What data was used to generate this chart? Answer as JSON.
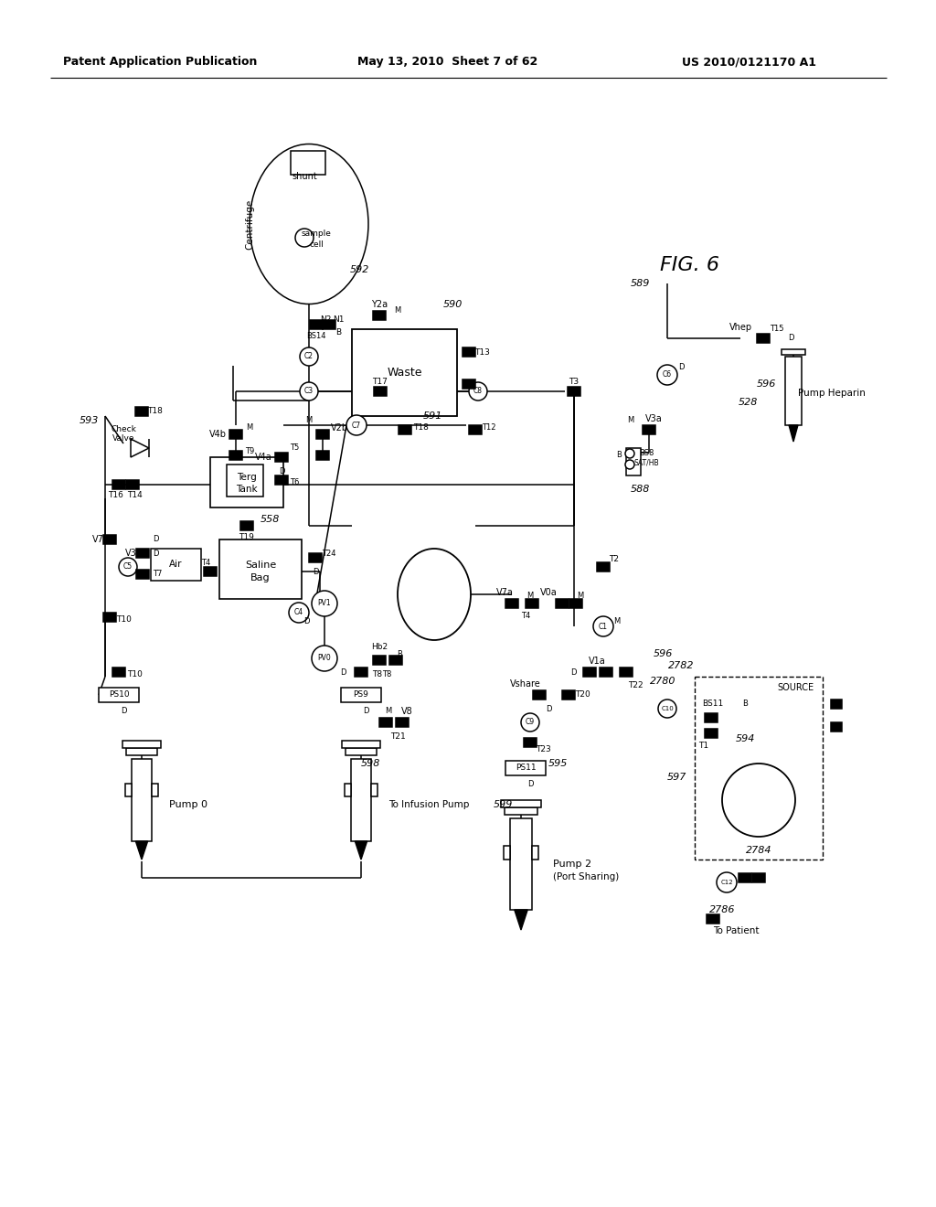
{
  "header_left": "Patent Application Publication",
  "header_mid": "May 13, 2010  Sheet 7 of 62",
  "header_right": "US 2010/0121170 A1",
  "fig_label": "FIG. 6",
  "bg_color": "#ffffff",
  "lc": "#000000"
}
